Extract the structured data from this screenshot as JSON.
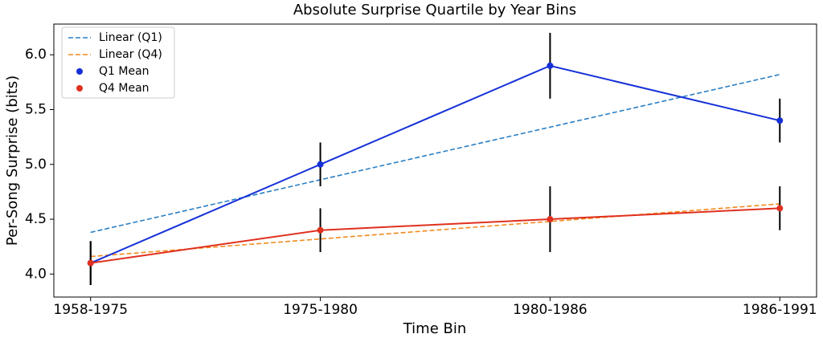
{
  "chart_data": {
    "type": "line",
    "title": "Absolute Surprise Quartile by Year Bins",
    "x_label": "Time Bin",
    "y_label": "Per-Song Surprise (bits)",
    "categories": [
      "1958-1975",
      "1975-1980",
      "1980-1986",
      "1986-1991"
    ],
    "ylim": [
      3.79,
      6.28
    ],
    "yticks": [
      {
        "value": 4,
        "label": "4.0"
      },
      4.5,
      {
        "value": 5,
        "label": "5.0"
      },
      5.5,
      {
        "value": 6,
        "label": "6.0"
      }
    ],
    "legend": "upper-left",
    "series": [
      {
        "name": "Linear (Q1)",
        "color": "#2a7fc4",
        "style": "dashed",
        "values": [
          4.38,
          4.86,
          5.34,
          5.82
        ]
      },
      {
        "name": "Linear (Q4)",
        "color": "#f28a1e",
        "style": "dashed",
        "values": [
          4.16,
          4.32,
          4.48,
          4.64
        ]
      },
      {
        "name": "Q1 Mean",
        "color": "#1530d8",
        "style": "markers",
        "values": [
          4.1,
          5.0,
          5.9,
          5.4
        ],
        "errors": [
          0.2,
          0.2,
          0.3,
          0.2
        ]
      },
      {
        "name": "Q4 Mean",
        "color": "#e0301e",
        "style": "markers",
        "values": [
          4.1,
          4.4,
          4.5,
          4.6
        ],
        "errors": [
          0.2,
          0.2,
          0.3,
          0.2
        ]
      }
    ]
  }
}
